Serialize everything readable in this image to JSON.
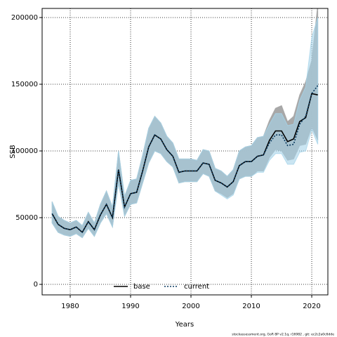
{
  "chart_data": {
    "type": "line",
    "x_label": "Years",
    "y_label": "SSB",
    "footer": "stockassessment.org, GoR 8P v2.1q, r16982 , git: ec2c2a0c6dde",
    "x": [
      1977,
      1978,
      1979,
      1980,
      1981,
      1982,
      1983,
      1984,
      1985,
      1986,
      1987,
      1988,
      1989,
      1990,
      1991,
      1992,
      1993,
      1994,
      1995,
      1996,
      1997,
      1998,
      1999,
      2000,
      2001,
      2002,
      2003,
      2004,
      2005,
      2006,
      2007,
      2008,
      2009,
      2010,
      2011,
      2012,
      2013,
      2014,
      2015,
      2016,
      2017,
      2018,
      2019,
      2020,
      2021
    ],
    "series": [
      {
        "name": "base",
        "color": "#000000",
        "linestyle": "solid",
        "band_color": "#a3a3a3",
        "values": [
          53000,
          45000,
          42000,
          41000,
          43000,
          39000,
          47000,
          41000,
          52000,
          60000,
          50000,
          86000,
          58000,
          68000,
          69000,
          85000,
          103000,
          112000,
          109000,
          101000,
          96000,
          84000,
          85000,
          85000,
          85000,
          91000,
          90000,
          78000,
          76000,
          73000,
          77000,
          89000,
          92000,
          92000,
          96000,
          97000,
          108000,
          115000,
          115000,
          107000,
          109000,
          122000,
          125000,
          143000,
          142000
        ],
        "lower": [
          46000,
          39000,
          37000,
          36000,
          38000,
          35000,
          42000,
          36000,
          46000,
          53000,
          43000,
          76000,
          51000,
          60000,
          61000,
          76000,
          91000,
          100000,
          98000,
          92000,
          88000,
          76000,
          77000,
          77000,
          77000,
          83000,
          81000,
          70000,
          68000,
          65000,
          68000,
          79000,
          81000,
          81000,
          85000,
          85000,
          95000,
          101000,
          100000,
          93000,
          94000,
          104000,
          105000,
          118000,
          108000
        ],
        "upper": [
          62000,
          51000,
          48000,
          46000,
          48000,
          44000,
          54000,
          46000,
          60000,
          70000,
          58000,
          100000,
          66000,
          78000,
          79000,
          97000,
          117000,
          126000,
          121000,
          111000,
          106000,
          94000,
          94000,
          94000,
          93000,
          101000,
          100000,
          87000,
          85000,
          81000,
          86000,
          100000,
          103000,
          104000,
          110000,
          111000,
          123000,
          132000,
          134000,
          122000,
          126000,
          142000,
          152000,
          168000,
          210000
        ]
      },
      {
        "name": "current",
        "color": "#0b3b60",
        "linestyle": "dotted",
        "band_color": "#a6d4ea",
        "values": [
          53000,
          45000,
          42000,
          41000,
          43000,
          39000,
          47000,
          41000,
          52000,
          60000,
          50000,
          86000,
          58000,
          68000,
          69000,
          85000,
          103000,
          112000,
          109000,
          101000,
          96000,
          84000,
          85000,
          85000,
          85000,
          91000,
          90000,
          78000,
          76000,
          73000,
          77000,
          89000,
          92000,
          92000,
          96000,
          97000,
          106000,
          112000,
          112000,
          104000,
          105000,
          120000,
          126000,
          143000,
          149000
        ],
        "lower": [
          46000,
          39000,
          37000,
          36000,
          38000,
          35000,
          42000,
          36000,
          46000,
          53000,
          43000,
          76000,
          51000,
          60000,
          61000,
          76000,
          91000,
          100000,
          98000,
          92000,
          88000,
          76000,
          77000,
          77000,
          77000,
          83000,
          81000,
          70000,
          67000,
          64000,
          67000,
          79000,
          81000,
          81000,
          84000,
          84000,
          93000,
          98000,
          98000,
          90000,
          90000,
          99000,
          100000,
          116000,
          105000
        ],
        "upper": [
          62000,
          51000,
          48000,
          46000,
          48000,
          44000,
          54000,
          46000,
          60000,
          70000,
          58000,
          100000,
          66000,
          78000,
          79000,
          97000,
          117000,
          126000,
          121000,
          111000,
          106000,
          94000,
          94000,
          94000,
          93000,
          101000,
          100000,
          87000,
          85000,
          81000,
          86000,
          100000,
          103000,
          104000,
          110000,
          111000,
          120000,
          128000,
          128000,
          119000,
          120000,
          138000,
          148000,
          185000,
          200000
        ]
      }
    ],
    "xlim": [
      1975.35,
      2022.67
    ],
    "xticks": [
      1980,
      1990,
      2000,
      2010,
      2020
    ],
    "ylim": [
      -7874,
      206824
    ],
    "yticks": [
      0,
      50000,
      100000,
      150000,
      200000
    ],
    "grid": true,
    "legend": "bottom"
  }
}
